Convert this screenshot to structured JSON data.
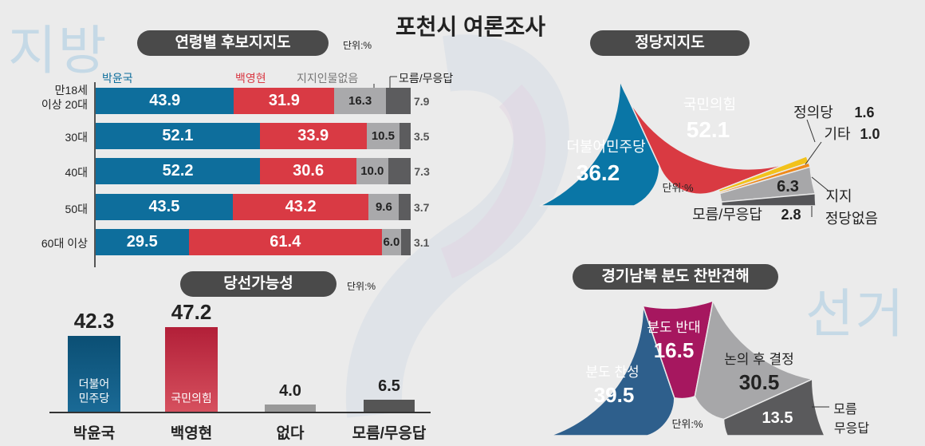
{
  "title": "포천시 여론조사",
  "watermarks": [
    "지방",
    "선거"
  ],
  "unit_label": "단위:%",
  "chart_data": [
    {
      "type": "bar",
      "title": "연령별 후보지지도",
      "unit": "단위:%",
      "categories": [
        "만18세\n이상 20대",
        "30대",
        "40대",
        "50대",
        "60대 이상"
      ],
      "series": [
        {
          "name": "박윤국",
          "color": "#0e6e9c",
          "values": [
            43.9,
            52.1,
            52.2,
            43.5,
            29.5
          ]
        },
        {
          "name": "백영현",
          "color": "#d93a44",
          "values": [
            31.9,
            33.9,
            30.6,
            43.2,
            61.4
          ]
        },
        {
          "name": "지지인물없음",
          "color": "#a9a9ab",
          "values": [
            16.3,
            10.5,
            10.0,
            9.6,
            6.0
          ]
        },
        {
          "name": "모름/무응답",
          "color": "#5c5c5e",
          "values": [
            7.9,
            3.5,
            7.3,
            3.7,
            3.1
          ]
        }
      ],
      "labels": [
        "43.9",
        "31.9",
        "16.3",
        "7.9",
        "52.1",
        "33.9",
        "10.5",
        "3.5",
        "52.2",
        "30.6",
        "10.0",
        "7.3",
        "43.5",
        "43.2",
        "9.6",
        "3.7",
        "29.5",
        "61.4",
        "6.0",
        "3.1"
      ]
    },
    {
      "type": "bar",
      "title": "당선가능성",
      "unit": "단위:%",
      "categories": [
        "박윤국",
        "백영현",
        "없다",
        "모름/무응답"
      ],
      "sublabels": [
        "더불어\n민주당",
        "국민의힘",
        "",
        ""
      ],
      "values": [
        42.3,
        47.2,
        4.0,
        6.5
      ],
      "value_labels": [
        "42.3",
        "47.2",
        "4.0",
        "6.5"
      ],
      "colors": [
        "#0b4f74",
        "#b21f38",
        "#999999",
        "#555555"
      ],
      "ylim": [
        0,
        50
      ]
    },
    {
      "type": "pie",
      "title": "정당지지도",
      "unit": "단위:%",
      "slices": [
        {
          "name": "더불어민주당",
          "value": 36.2,
          "label": "36.2",
          "color": "#0a76a6"
        },
        {
          "name": "국민의힘",
          "value": 52.1,
          "label": "52.1",
          "color": "#d93a42"
        },
        {
          "name": "정의당",
          "value": 1.6,
          "label": "1.6",
          "color": "#f2c21b"
        },
        {
          "name": "기타",
          "value": 1.0,
          "label": "1.0",
          "color": "#ef8a1c"
        },
        {
          "name": "지지 정당없음",
          "value": 6.3,
          "label": "6.3",
          "color": "#a7a7a9"
        },
        {
          "name": "모름/무응답",
          "value": 2.8,
          "label": "2.8",
          "color": "#555558"
        }
      ],
      "label_texts": {
        "minju": "더불어민주당",
        "kukmin": "국민의힘",
        "jeongui": "정의당",
        "gita": "기타",
        "none_line1": "지지",
        "none_line2": "정당없음",
        "moreum": "모름/무응답"
      }
    },
    {
      "type": "pie",
      "title": "경기남북 분도 찬반견해",
      "unit": "단위:%",
      "slices": [
        {
          "name": "분도 찬성",
          "value": 39.5,
          "label": "39.5",
          "color": "#2e5f8c"
        },
        {
          "name": "분도 반대",
          "value": 16.5,
          "label": "16.5",
          "color": "#a6175f"
        },
        {
          "name": "논의 후 결정",
          "value": 30.5,
          "label": "30.5",
          "color": "#a7a7a9"
        },
        {
          "name": "모름 무응답",
          "value": 13.5,
          "label": "13.5",
          "color": "#5a5a5c"
        }
      ],
      "label_texts": {
        "chan": "분도 찬성",
        "ban": "분도 반대",
        "nonui": "논의 후 결정",
        "moreum1": "모름",
        "moreum2": "무응답"
      }
    }
  ]
}
